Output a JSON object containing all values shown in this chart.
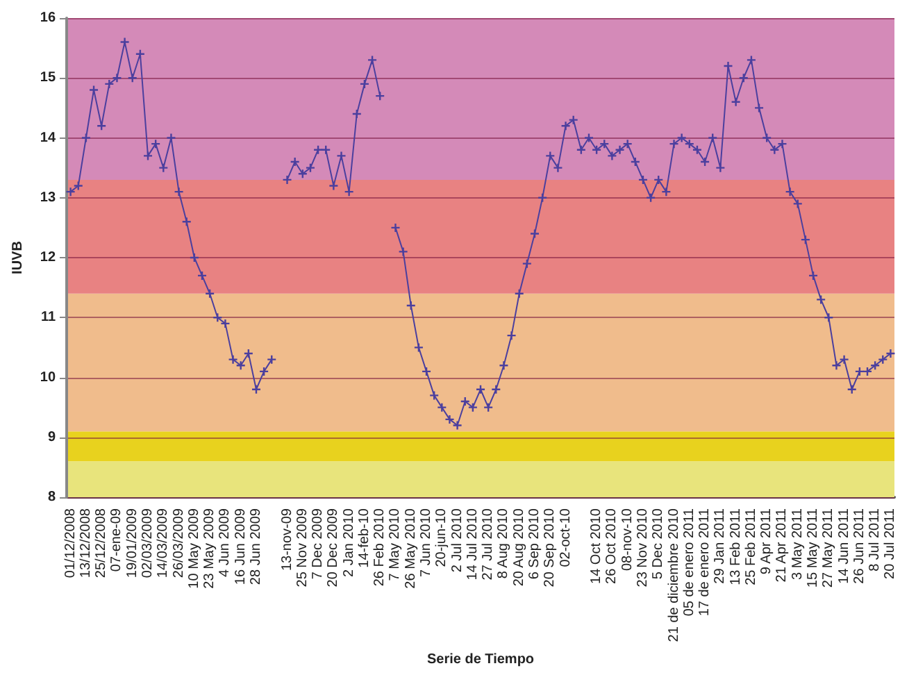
{
  "chart_data": {
    "type": "line",
    "xlabel": "Serie de Tiempo",
    "ylabel": "IUVB",
    "categories": [
      "01/12/2008",
      null,
      "13/12/2008",
      null,
      "25/12/2008",
      null,
      "07-ene-09",
      null,
      "19/01/2009",
      null,
      "02/03/2009",
      null,
      "14/03/2009",
      null,
      "26/03/2009",
      null,
      "10 May 2009",
      null,
      "23 May 2009",
      null,
      "4 Jun 2009",
      null,
      "16 Jun 2009",
      null,
      "28 Jun 2009",
      null,
      null,
      null,
      "13-nov-09",
      null,
      "25 Nov 2009",
      null,
      "7 Dec 2009",
      null,
      "20 Dec 2009",
      null,
      "2 Jan 2010",
      null,
      "14-feb-10",
      null,
      "26 Feb 2010",
      null,
      "7 May 2010",
      null,
      "26 May 2010",
      null,
      "7 Jun 2010",
      null,
      "20-jun-10",
      null,
      "2 Jul 2010",
      null,
      "14 Jul 2010",
      null,
      "27 Jul 2010",
      null,
      "8 Aug 2010",
      null,
      "20 Aug 2010",
      null,
      "6 Sep 2010",
      null,
      "20 Sep 2010",
      null,
      "02-oct-10",
      null,
      null,
      null,
      "14 Oct 2010",
      null,
      "26 Oct 2010",
      null,
      "08-nov-10",
      null,
      "23 Nov 2010",
      null,
      "5 Dec 2010",
      null,
      "21 de diciembre 2010",
      null,
      "05 de enero 2011",
      null,
      "17 de enero 2011",
      null,
      "29 Jan 2011",
      null,
      "13 Feb 2011",
      null,
      "25 Feb 2011",
      null,
      "9 Apr 2011",
      null,
      "21 Apr 2011",
      null,
      "3 May 2011",
      null,
      "15 May 2011",
      null,
      "27 May 2011",
      null,
      "14 Jun 2011",
      null,
      "26 Jun 2011",
      null,
      "8 Jul 2011",
      null,
      "20 Jul 2011"
    ],
    "series": [
      {
        "color": "#4b3f9e",
        "values": [
          13.1,
          13.2,
          14.0,
          14.8,
          14.2,
          14.9,
          15.0,
          15.6,
          15.0,
          15.4,
          13.7,
          13.9,
          13.5,
          14.0,
          13.1,
          12.6,
          12.0,
          11.7,
          11.4,
          11.0,
          10.9,
          10.3,
          10.2,
          10.4,
          9.8,
          10.1,
          10.3,
          null,
          13.3,
          13.6,
          13.4,
          13.5,
          13.8,
          13.8,
          13.2,
          13.7,
          13.1,
          14.4,
          14.9,
          15.3,
          14.7,
          null,
          12.5,
          12.1,
          11.2,
          10.5,
          10.1,
          9.7,
          9.5,
          9.3,
          9.2,
          9.6,
          9.5,
          9.8,
          9.5,
          9.8,
          10.2,
          10.7,
          11.4,
          11.9,
          12.4,
          13.0,
          13.7,
          13.5,
          14.2,
          14.3,
          13.8,
          14.0,
          13.8,
          13.9,
          13.7,
          13.8,
          13.9,
          13.6,
          13.3,
          13.0,
          13.3,
          13.1,
          13.9,
          14.0,
          13.9,
          13.8,
          13.6,
          14.0,
          13.5,
          15.2,
          14.6,
          15.0,
          15.3,
          14.5,
          14.0,
          13.8,
          13.9,
          13.1,
          12.9,
          12.3,
          11.7,
          11.3,
          11.0,
          10.2,
          10.3,
          9.8,
          10.1,
          10.1,
          10.2,
          10.3,
          10.4
        ]
      }
    ],
    "ylim": [
      8,
      16
    ],
    "yticks": [
      8,
      9,
      10,
      11,
      12,
      13,
      14,
      15,
      16
    ],
    "bands": [
      {
        "axis": "y",
        "from": 8,
        "to": 8.6,
        "color": "#e8e47c"
      },
      {
        "axis": "y",
        "from": 8.6,
        "to": 9.1,
        "color": "#e8d21e"
      },
      {
        "axis": "y",
        "from": 9.1,
        "to": 11.4,
        "color": "#f0bc8c"
      },
      {
        "axis": "y",
        "from": 11.4,
        "to": 13.3,
        "color": "#e88282"
      },
      {
        "axis": "y",
        "from": 13.3,
        "to": 16,
        "color": "#d48ab8"
      }
    ],
    "grid": "y",
    "marker": "cross",
    "line_style": "solid"
  }
}
